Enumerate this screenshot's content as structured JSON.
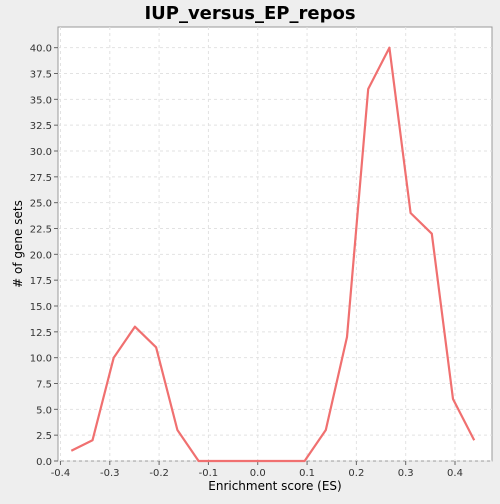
{
  "chart_data": {
    "type": "line",
    "title": "IUP_versus_EP_repos",
    "xlabel": "Enrichment score (ES)",
    "ylabel": "# of gene sets",
    "xlim": [
      -0.405,
      0.475
    ],
    "ylim": [
      0,
      42
    ],
    "xticks": [
      -0.4,
      -0.3,
      -0.2,
      -0.1,
      0.0,
      0.1,
      0.2,
      0.3,
      0.4
    ],
    "xtick_labels": [
      "-0.4",
      "-0.3",
      "-0.2",
      "-0.1",
      "0.0",
      "0.1",
      "0.2",
      "0.3",
      "0.4"
    ],
    "yticks": [
      0,
      2.5,
      5,
      7.5,
      10,
      12.5,
      15,
      17.5,
      20,
      22.5,
      25,
      27.5,
      30,
      32.5,
      35,
      37.5,
      40
    ],
    "ytick_labels": [
      "0.0",
      "2.5",
      "5.0",
      "7.5",
      "10.0",
      "12.5",
      "15.0",
      "17.5",
      "20.0",
      "22.5",
      "25.0",
      "27.5",
      "30.0",
      "32.5",
      "35.0",
      "37.5",
      "40.0"
    ],
    "grid": true,
    "series": [
      {
        "color": "#f07070",
        "x": [
          -0.378,
          -0.335,
          -0.292,
          -0.249,
          -0.206,
          -0.163,
          -0.12,
          -0.077,
          -0.034,
          0.009,
          0.052,
          0.095,
          0.138,
          0.181,
          0.224,
          0.267,
          0.31,
          0.353,
          0.396,
          0.439
        ],
        "y": [
          1,
          2,
          10,
          13,
          11,
          3,
          0,
          0,
          0,
          0,
          0,
          0,
          3,
          12,
          36,
          40,
          24,
          22,
          6,
          2
        ]
      }
    ]
  }
}
